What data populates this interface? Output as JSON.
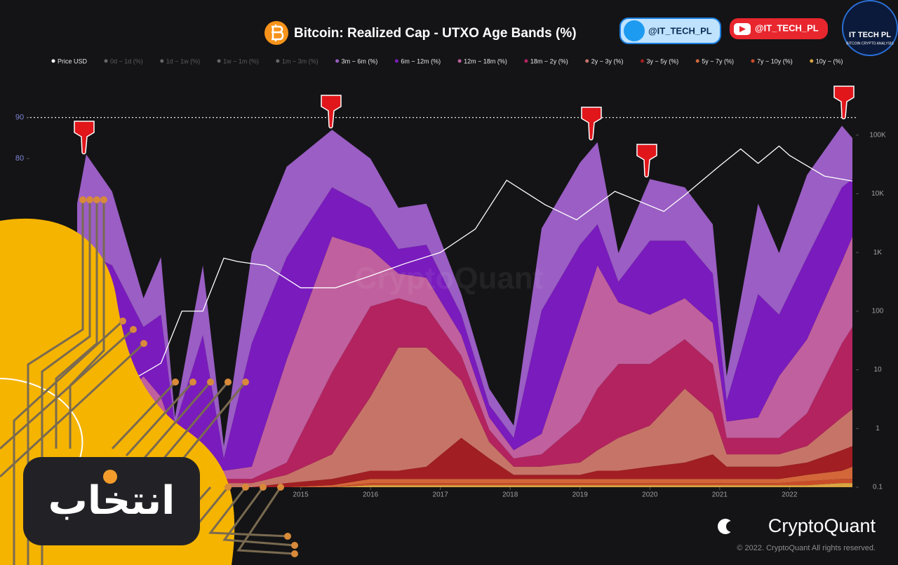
{
  "chart_data": {
    "type": "area",
    "stacked": true,
    "title": "Bitcoin: Realized Cap - UTXO Age Bands (%)",
    "watermark": "CryptoQuant",
    "x": [
      2011.8,
      2011.93,
      2012.3,
      2012.75,
      2013.0,
      2013.2,
      2013.6,
      2013.9,
      2014.3,
      2014.8,
      2015.45,
      2016.0,
      2016.4,
      2016.8,
      2017.3,
      2017.7,
      2018.05,
      2018.45,
      2019.0,
      2019.25,
      2019.55,
      2020.0,
      2020.5,
      2020.9,
      2021.1,
      2021.55,
      2021.85,
      2022.25,
      2022.75,
      2022.9
    ],
    "xlim": [
      2011.7,
      2022.95
    ],
    "xticks": [
      2015,
      2016,
      2017,
      2018,
      2019,
      2020,
      2021,
      2022
    ],
    "ylim": [
      0,
      100
    ],
    "yticks": [
      80,
      90
    ],
    "reference_line": 90,
    "y2lim": [
      0.1,
      1000000
    ],
    "y2_log": true,
    "y2ticks": [
      0.1,
      1,
      10,
      100,
      {
        "value": 1000,
        "label": "1K"
      },
      {
        "value": 10000,
        "label": "10K"
      },
      {
        "value": 100000,
        "label": "100K"
      }
    ],
    "inactive_series": [
      "0d ~ 1d (%)",
      "1d ~ 1w (%)",
      "1w ~ 1m (%)",
      "1m ~ 3m (%)"
    ],
    "price": {
      "name": "Price USD",
      "color": "#ffffff",
      "axis": "y2",
      "x": [
        2012.4,
        2013.0,
        2013.3,
        2013.6,
        2013.9,
        2014.1,
        2014.5,
        2015.0,
        2015.5,
        2016.0,
        2016.5,
        2017.0,
        2017.5,
        2017.95,
        2018.5,
        2018.95,
        2019.5,
        2020.2,
        2020.5,
        2021.0,
        2021.3,
        2021.55,
        2021.85,
        2022.0,
        2022.5,
        2022.9
      ],
      "values": [
        5,
        13,
        100,
        100,
        800,
        700,
        600,
        250,
        250,
        400,
        650,
        1000,
        2500,
        17000,
        6500,
        3600,
        11000,
        5000,
        9500,
        30000,
        58000,
        33000,
        65000,
        45000,
        20000,
        16500
      ]
    },
    "series": [
      {
        "name": "3m ~ 6m (%)",
        "color": "#9a5ec4",
        "values": [
          17,
          24,
          18,
          7,
          14,
          2,
          17,
          3,
          22,
          22,
          14,
          12,
          10,
          10,
          5,
          4,
          3,
          20,
          20,
          20,
          7,
          15,
          13,
          12,
          6,
          22,
          15,
          20,
          15,
          10
        ]
      },
      {
        "name": "6m ~ 12m (%)",
        "color": "#7a1bbd",
        "values": [
          40,
          45,
          35,
          12,
          20,
          3,
          30,
          3,
          30,
          25,
          12,
          10,
          6,
          8,
          5,
          3,
          3,
          30,
          18,
          10,
          5,
          18,
          14,
          12,
          5,
          30,
          15,
          20,
          18,
          14
        ]
      },
      {
        "name": "12m ~ 18m (%)",
        "color": "#c0609e",
        "values": [
          10,
          10,
          15,
          15,
          12,
          5,
          4,
          2,
          3,
          25,
          33,
          14,
          6,
          7,
          5,
          3,
          2,
          5,
          25,
          30,
          15,
          12,
          10,
          10,
          4,
          5,
          15,
          18,
          20,
          22
        ]
      },
      {
        "name": "18m ~ 2y (%)",
        "color": "#b3235f",
        "values": [
          2,
          2,
          3,
          8,
          6,
          4,
          2,
          1,
          1,
          3,
          20,
          22,
          12,
          10,
          6,
          3,
          2,
          3,
          10,
          15,
          18,
          15,
          12,
          12,
          4,
          4,
          4,
          8,
          18,
          20
        ]
      },
      {
        "name": "2y ~ 3y (%)",
        "color": "#c77468",
        "values": [
          0,
          0,
          1,
          3,
          3,
          2,
          1,
          1,
          1,
          2,
          6,
          18,
          30,
          29,
          14,
          4,
          2,
          2,
          3,
          5,
          8,
          10,
          18,
          10,
          3,
          3,
          3,
          4,
          8,
          9
        ]
      },
      {
        "name": "3y ~ 5y (%)",
        "color": "#a11e22",
        "values": [
          0,
          0,
          0,
          1,
          1,
          1,
          0,
          0,
          0,
          1,
          1.5,
          2,
          2,
          3,
          10,
          5,
          1,
          1,
          1,
          2,
          2,
          3,
          4,
          6,
          3,
          3,
          3,
          3,
          5,
          5
        ]
      },
      {
        "name": "5y ~ 7y (%)",
        "color": "#d3673a",
        "values": [
          0,
          0,
          0,
          0,
          0,
          0,
          0,
          0,
          0,
          0,
          0.5,
          1,
          1,
          1,
          1,
          1,
          1,
          1,
          1,
          1,
          1,
          1,
          1,
          1,
          1,
          1,
          1,
          1.5,
          2,
          3
        ]
      },
      {
        "name": "7y ~ 10y (%)",
        "color": "#c94c2a",
        "values": [
          0,
          0,
          0,
          0,
          0,
          0,
          0,
          0,
          0,
          0,
          0,
          0.5,
          0.5,
          0.5,
          0.5,
          0.5,
          0.5,
          0.5,
          0.5,
          0.5,
          0.5,
          0.5,
          0.5,
          0.5,
          0.5,
          0.5,
          0.5,
          1,
          1,
          1
        ]
      },
      {
        "name": "10y ~ (%)",
        "color": "#d9a441",
        "values": [
          0,
          0,
          0,
          0,
          0,
          0,
          0,
          0,
          0,
          0,
          0,
          0.5,
          0.5,
          0.5,
          0.5,
          0.5,
          0.5,
          0.5,
          0.5,
          0.5,
          0.5,
          0.5,
          0.5,
          0.5,
          0.5,
          0.5,
          0.5,
          0.5,
          1,
          1
        ]
      }
    ]
  },
  "branding": {
    "twitter": "@IT_TECH_PL",
    "youtube": "@IT_TECH_PL",
    "badge_title": "IT TECH PL",
    "badge_subtitle": "BITCOIN CRYPTO ANALYSIS",
    "overlay_logo": "انتخاب",
    "provider": "CryptoQuant",
    "copyright": "© 2022. CryptoQuant All rights reserved."
  }
}
